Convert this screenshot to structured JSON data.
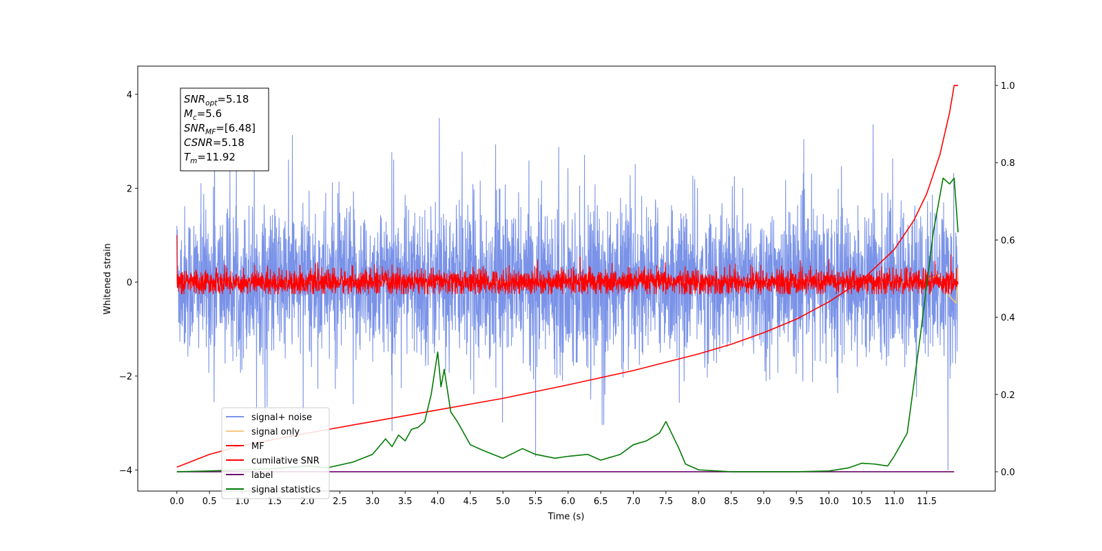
{
  "chart_data": {
    "type": "line",
    "xlabel": "Time (s)",
    "ylabel": "Whitened strain",
    "ylabel_right": "",
    "xlim": [
      -0.6,
      12.55
    ],
    "ylim": [
      -4.45,
      4.6
    ],
    "ylim_right": [
      -0.05,
      1.05
    ],
    "x_ticks": [
      0.0,
      0.5,
      1.0,
      1.5,
      2.0,
      2.5,
      3.0,
      3.5,
      4.0,
      4.5,
      5.0,
      5.5,
      6.0,
      6.5,
      7.0,
      7.5,
      8.0,
      8.5,
      9.0,
      9.5,
      10.0,
      10.5,
      11.0,
      11.5
    ],
    "x_tick_labels": [
      "0.0",
      "0.5",
      "1.0",
      "1.5",
      "2.0",
      "2.5",
      "3.0",
      "3.5",
      "4.0",
      "4.5",
      "5.0",
      "5.5",
      "6.0",
      "6.5",
      "7.0",
      "7.5",
      "8.0",
      "8.5",
      "9.0",
      "9.5",
      "10.0",
      "10.5",
      "11.0",
      "11.5"
    ],
    "y_ticks": [
      -4,
      -2,
      0,
      2,
      4
    ],
    "y_tick_labels": [
      "−4",
      "−2",
      "0",
      "2",
      "4"
    ],
    "y_right_ticks": [
      0.0,
      0.2,
      0.4,
      0.6,
      0.8,
      1.0
    ],
    "y_right_tick_labels": [
      "0.0",
      "0.2",
      "0.4",
      "0.6",
      "0.8",
      "1.0"
    ],
    "grid": false,
    "legend_position": "lower-left",
    "annotation_box": {
      "position": "top-left",
      "lines": [
        {
          "base": "SNR",
          "sub": "opt",
          "value": "=5.18"
        },
        {
          "base": "M",
          "sub": "c",
          "value": "=5.6"
        },
        {
          "base": "SNR",
          "sub": "MF",
          "value": "=[6.48]"
        },
        {
          "base": "CSNR",
          "sub": "",
          "value": "=5.18"
        },
        {
          "base": "T",
          "sub": "m",
          "value": "=11.92"
        }
      ]
    },
    "series": [
      {
        "name": "signal+ noise",
        "color": "#7a93e8",
        "axis": "left",
        "kind": "noise_band",
        "x_range": [
          0.0,
          11.98
        ],
        "center": 0.0,
        "typical_band": [
          -1.2,
          1.5
        ],
        "max_peak": 4.15,
        "min_trough": -4.0
      },
      {
        "name": "signal only",
        "color": "#f5c77e",
        "axis": "left",
        "x": [
          0.0,
          11.3,
          11.5,
          11.7,
          11.85,
          11.95,
          11.98
        ],
        "y": [
          0.0,
          0.0,
          0.05,
          0.15,
          -0.3,
          -0.45,
          0.3
        ]
      },
      {
        "name": "MF",
        "color": "#ff0000",
        "axis": "left",
        "kind": "noise_band",
        "x_range": [
          0.0,
          11.98
        ],
        "center": 0.0,
        "typical_band": [
          -0.2,
          0.25
        ],
        "max_peak": 1.0,
        "min_trough": -0.25
      },
      {
        "name": "cumilative SNR",
        "color": "#ff0000",
        "axis": "right",
        "x": [
          0.0,
          0.5,
          1.0,
          2.0,
          3.0,
          4.0,
          5.0,
          6.0,
          7.0,
          8.0,
          8.5,
          9.0,
          9.5,
          10.0,
          10.5,
          11.0,
          11.3,
          11.5,
          11.7,
          11.85,
          11.92,
          11.98
        ],
        "y": [
          0.012,
          0.045,
          0.068,
          0.1,
          0.13,
          0.16,
          0.19,
          0.225,
          0.262,
          0.305,
          0.33,
          0.36,
          0.395,
          0.44,
          0.495,
          0.575,
          0.65,
          0.72,
          0.82,
          0.93,
          1.0,
          1.0
        ]
      },
      {
        "name": "label",
        "color": "#6b006b",
        "axis": "right",
        "x": [
          0.0,
          11.92
        ],
        "y": [
          0.0,
          0.0
        ]
      },
      {
        "name": "signal statistics",
        "color": "#007a00",
        "axis": "right",
        "x": [
          0.0,
          0.5,
          1.0,
          1.5,
          2.0,
          2.3,
          2.7,
          3.0,
          3.2,
          3.3,
          3.4,
          3.5,
          3.6,
          3.7,
          3.8,
          3.9,
          4.0,
          4.05,
          4.1,
          4.2,
          4.3,
          4.5,
          4.7,
          5.0,
          5.3,
          5.5,
          5.8,
          6.0,
          6.3,
          6.5,
          6.8,
          7.0,
          7.2,
          7.4,
          7.5,
          7.7,
          7.8,
          8.0,
          8.5,
          9.0,
          9.5,
          10.0,
          10.3,
          10.5,
          10.7,
          10.9,
          11.0,
          11.2,
          11.4,
          11.6,
          11.75,
          11.85,
          11.92,
          11.98
        ],
        "y": [
          0.0,
          0.002,
          0.005,
          0.008,
          0.015,
          0.01,
          0.025,
          0.045,
          0.085,
          0.065,
          0.095,
          0.08,
          0.11,
          0.115,
          0.13,
          0.2,
          0.31,
          0.22,
          0.265,
          0.155,
          0.13,
          0.07,
          0.055,
          0.035,
          0.06,
          0.045,
          0.035,
          0.04,
          0.045,
          0.03,
          0.045,
          0.07,
          0.08,
          0.1,
          0.13,
          0.06,
          0.02,
          0.005,
          0.0,
          0.0,
          0.0,
          0.002,
          0.01,
          0.022,
          0.02,
          0.015,
          0.04,
          0.1,
          0.35,
          0.62,
          0.76,
          0.745,
          0.76,
          0.62
        ]
      }
    ]
  }
}
